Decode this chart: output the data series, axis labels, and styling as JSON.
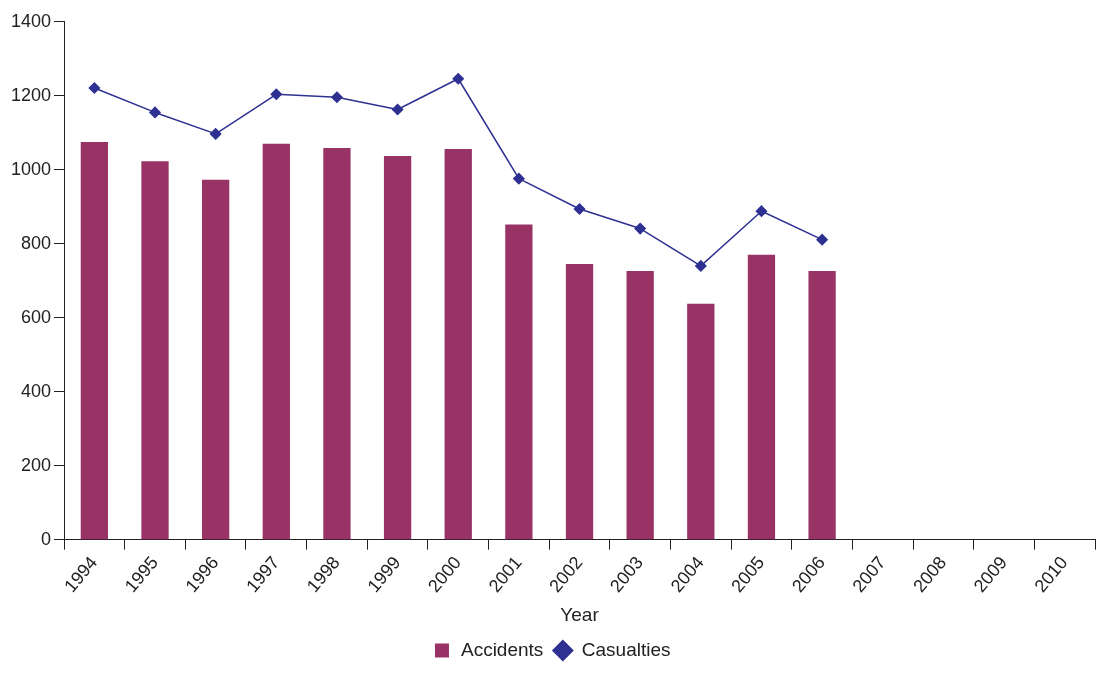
{
  "chart_data": {
    "type": "bar",
    "xlabel": "Year",
    "categories": [
      "1994",
      "1995",
      "1996",
      "1997",
      "1998",
      "1999",
      "2000",
      "2001",
      "2002",
      "2003",
      "2004",
      "2005",
      "2006",
      "2007",
      "2008",
      "2009",
      "2010"
    ],
    "series": [
      {
        "name": "Accidents",
        "color": "#993366",
        "values": [
          1075,
          1023,
          973,
          1070,
          1059,
          1037,
          1056,
          852,
          745,
          726,
          638,
          770,
          726,
          null,
          null,
          null,
          null
        ]
      },
      {
        "name": "Casualties",
        "type": "line",
        "color": "#2e3192",
        "marker": "diamond",
        "line_style": "solid",
        "values": [
          1221,
          1155,
          1097,
          1204,
          1196,
          1163,
          1246,
          976,
          894,
          841,
          740,
          888,
          811,
          null,
          null,
          null,
          null
        ]
      }
    ],
    "ylim": [
      0,
      1400
    ],
    "yticks": [
      0,
      200,
      400,
      600,
      800,
      1000,
      1200,
      1400
    ],
    "grid": false,
    "legend": "bottom"
  }
}
